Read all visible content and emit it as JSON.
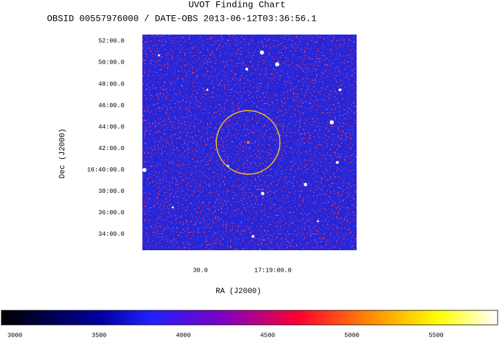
{
  "chart_data": {
    "type": "image",
    "title": "UVOT Finding Chart",
    "subtitle": "OBSID 00557976000 / DATE-OBS 2013-06-12T03:36:56.1",
    "xlabel": "RA (J2000)",
    "ylabel": "Dec (J2000)",
    "xlim": [
      54,
      -34.6
    ],
    "xticks": [
      {
        "value": 30,
        "label": "30.0"
      },
      {
        "value": 0,
        "label": "17:19:00.0"
      }
    ],
    "ylim": [
      32.5,
      52.6
    ],
    "yticks": [
      {
        "value": 52,
        "label": "52:00.0"
      },
      {
        "value": 50,
        "label": "50:00.0"
      },
      {
        "value": 48,
        "label": "48:00.0"
      },
      {
        "value": 46,
        "label": "46:00.0"
      },
      {
        "value": 44,
        "label": "44:00.0"
      },
      {
        "value": 42,
        "label": "42:00.0"
      },
      {
        "value": 40,
        "label": "16:40:00.0"
      },
      {
        "value": 38,
        "label": "38:00.0"
      },
      {
        "value": 36,
        "label": "36:00.0"
      },
      {
        "value": 34,
        "label": "34:00.0"
      }
    ],
    "colorbar": {
      "lim": [
        2920,
        5865
      ],
      "ticks": [
        3000,
        3500,
        4000,
        4500,
        5000,
        5500
      ]
    }
  }
}
